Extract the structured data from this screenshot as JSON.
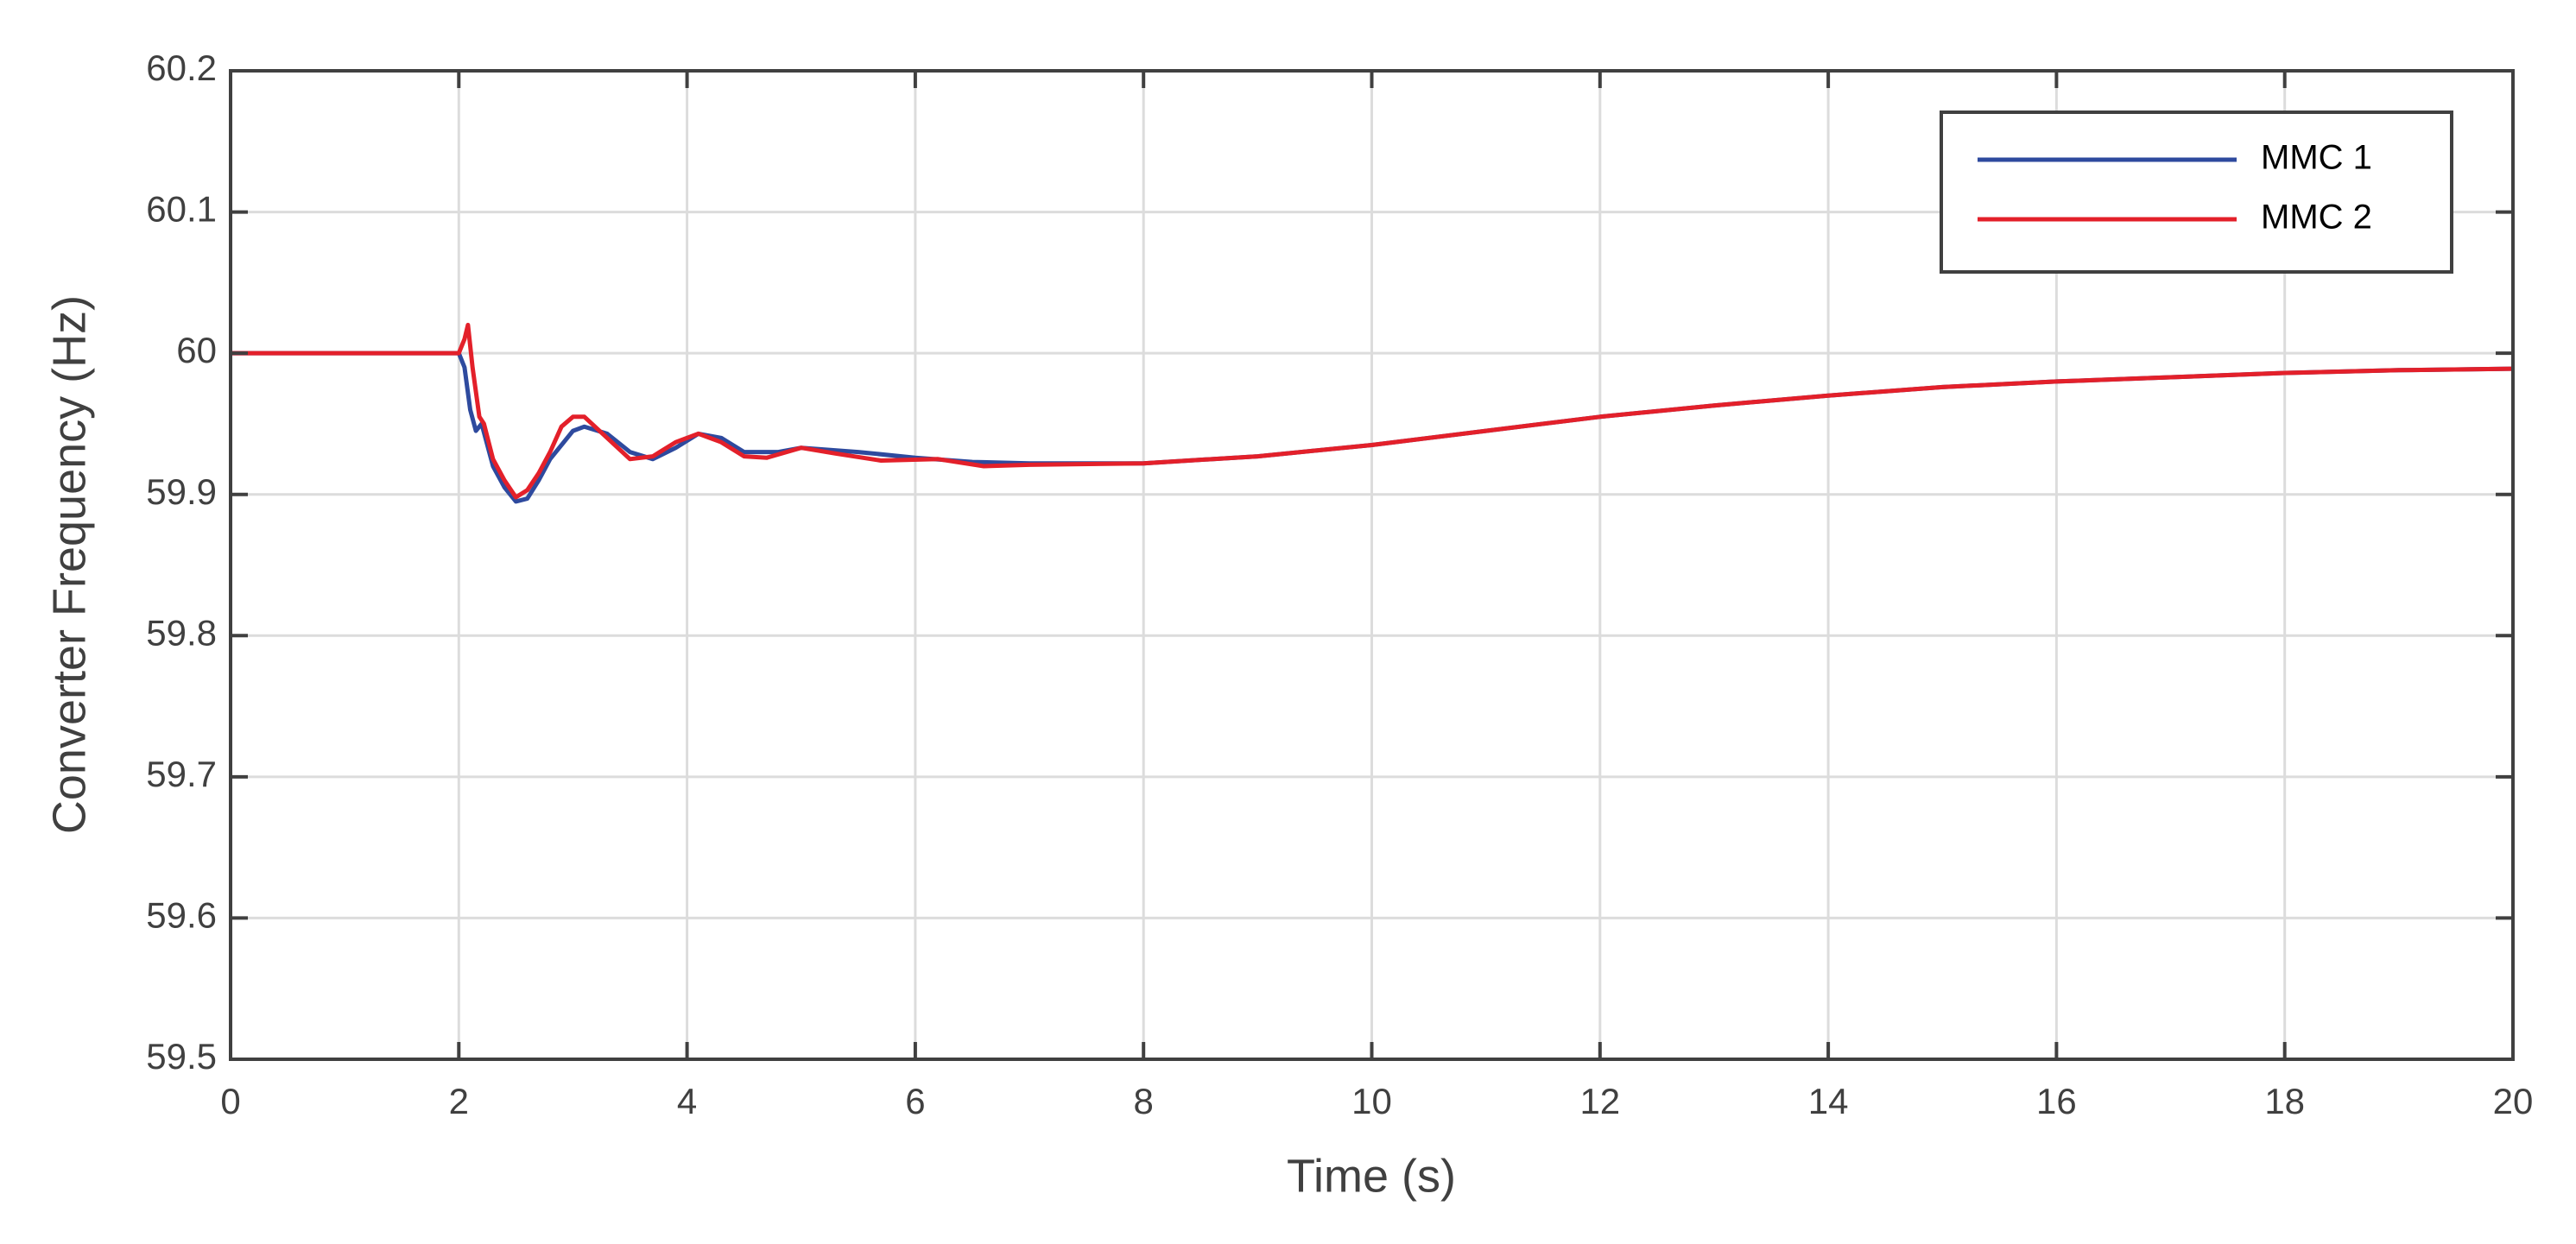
{
  "chart_data": {
    "type": "line",
    "xlabel": "Time (s)",
    "ylabel": "Converter Frequency (Hz)",
    "xlim": [
      0,
      20
    ],
    "xticks": [
      0,
      2,
      4,
      6,
      8,
      10,
      12,
      14,
      16,
      18,
      20
    ],
    "ylim": [
      59.5,
      60.2
    ],
    "yticks": [
      59.5,
      59.6,
      59.7,
      59.8,
      59.9,
      60,
      60.1,
      60.2
    ],
    "grid": true,
    "legend": "upper-right",
    "series": [
      {
        "name": "MMC 1",
        "color": "#2e4a9e",
        "x": [
          0,
          2,
          2.05,
          2.1,
          2.15,
          2.2,
          2.3,
          2.4,
          2.5,
          2.6,
          2.7,
          2.8,
          3.0,
          3.1,
          3.3,
          3.5,
          3.7,
          3.9,
          4.1,
          4.3,
          4.5,
          4.8,
          5.0,
          5.5,
          6.0,
          6.5,
          7,
          8,
          9,
          10,
          11,
          12,
          13,
          14,
          15,
          16,
          17,
          18,
          19,
          20
        ],
        "values": [
          60,
          60,
          59.99,
          59.96,
          59.945,
          59.95,
          59.92,
          59.905,
          59.895,
          59.897,
          59.91,
          59.925,
          59.945,
          59.948,
          59.943,
          59.93,
          59.925,
          59.933,
          59.943,
          59.94,
          59.93,
          59.93,
          59.933,
          59.93,
          59.926,
          59.923,
          59.922,
          59.922,
          59.927,
          59.935,
          59.945,
          59.955,
          59.963,
          59.97,
          59.976,
          59.98,
          59.983,
          59.986,
          59.988,
          59.989
        ]
      },
      {
        "name": "MMC 2",
        "color": "#e3202a",
        "x": [
          0,
          2,
          2.05,
          2.08,
          2.12,
          2.18,
          2.22,
          2.3,
          2.4,
          2.5,
          2.6,
          2.7,
          2.8,
          2.9,
          3.0,
          3.1,
          3.3,
          3.5,
          3.7,
          3.9,
          4.1,
          4.3,
          4.5,
          4.7,
          5.0,
          5.3,
          5.7,
          6.2,
          6.6,
          7,
          8,
          9,
          10,
          11,
          12,
          13,
          14,
          15,
          16,
          17,
          18,
          19,
          20
        ],
        "values": [
          60,
          60,
          60.01,
          60.02,
          59.99,
          59.955,
          59.95,
          59.925,
          59.91,
          59.898,
          59.903,
          59.915,
          59.93,
          59.948,
          59.955,
          59.955,
          59.94,
          59.925,
          59.927,
          59.937,
          59.943,
          59.937,
          59.927,
          59.926,
          59.933,
          59.929,
          59.924,
          59.925,
          59.92,
          59.921,
          59.922,
          59.927,
          59.935,
          59.945,
          59.955,
          59.963,
          59.97,
          59.976,
          59.98,
          59.983,
          59.986,
          59.988,
          59.989
        ]
      }
    ]
  }
}
